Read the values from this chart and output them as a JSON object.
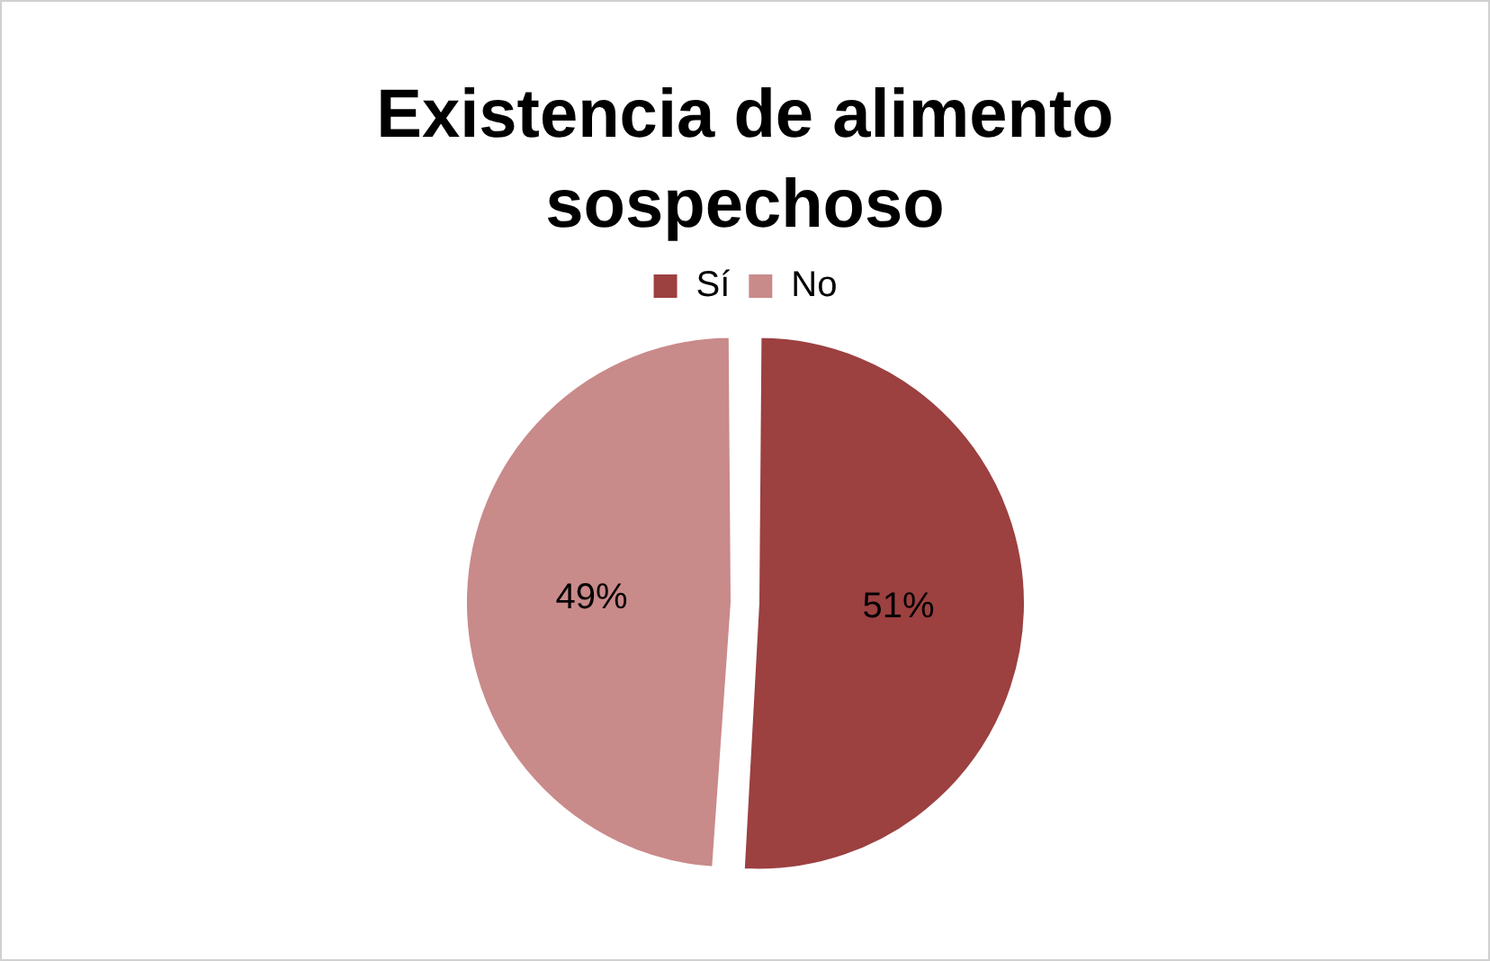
{
  "chart_data": {
    "type": "pie",
    "title": "Existencia de alimento sospechoso",
    "categories": [
      "Sí",
      "No"
    ],
    "values": [
      51,
      49
    ],
    "colors": [
      "#9c4040",
      "#c98a8a"
    ],
    "value_labels": [
      "51%",
      "49%"
    ],
    "legend": "top"
  }
}
